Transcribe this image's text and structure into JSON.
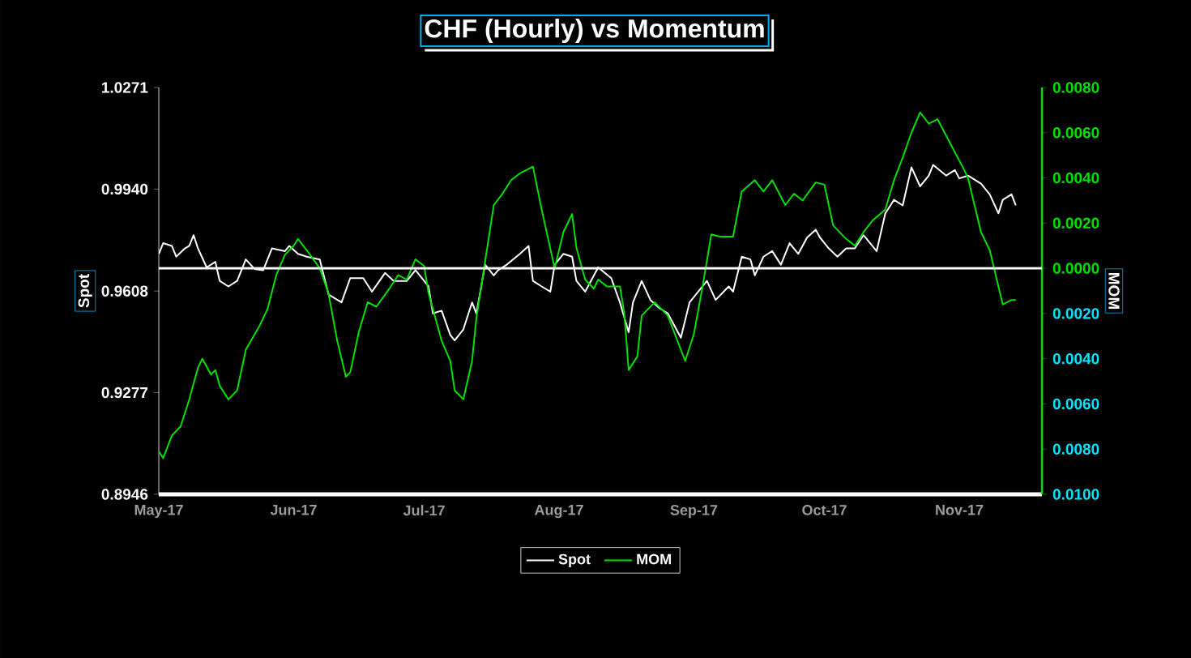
{
  "chart_data": {
    "type": "line",
    "title": "CHF (Hourly) vs Momentum",
    "ylabel": "Spot",
    "y2label": "MOM",
    "xlim": [
      "2017-05-01",
      "2017-11-20"
    ],
    "xticks": [
      {
        "value": "2017-05-01",
        "label": "May-17"
      },
      {
        "value": "2017-06-01",
        "label": "Jun-17"
      },
      {
        "value": "2017-07-01",
        "label": "Jul-17"
      },
      {
        "value": "2017-08-01",
        "label": "Aug-17"
      },
      {
        "value": "2017-09-01",
        "label": "Sep-17"
      },
      {
        "value": "2017-10-01",
        "label": "Oct-17"
      },
      {
        "value": "2017-11-01",
        "label": "Nov-17"
      }
    ],
    "ylim": [
      0.8946,
      1.0271
    ],
    "yticks": [
      {
        "value": 0.8946,
        "label": "0.8946"
      },
      {
        "value": 0.9277,
        "label": "0.9277"
      },
      {
        "value": 0.9608,
        "label": "0.9608"
      },
      {
        "value": 0.994,
        "label": "0.9940"
      },
      {
        "value": 1.0271,
        "label": "1.0271"
      }
    ],
    "y2lim": [
      -0.01,
      0.008
    ],
    "y2ticks": [
      {
        "value": -0.01,
        "label": "0.0100"
      },
      {
        "value": -0.008,
        "label": "0.0080"
      },
      {
        "value": -0.006,
        "label": "0.0060"
      },
      {
        "value": -0.004,
        "label": "0.0040"
      },
      {
        "value": -0.002,
        "label": "0.0020"
      },
      {
        "value": 0,
        "label": "0.0000"
      },
      {
        "value": 0.002,
        "label": "0.0020"
      },
      {
        "value": 0.004,
        "label": "0.0040"
      },
      {
        "value": 0.006,
        "label": "0.0060"
      },
      {
        "value": 0.008,
        "label": "0.0080"
      }
    ],
    "ref_lines": [
      {
        "axis": "y2",
        "value": 0,
        "color": "#ffffff"
      }
    ],
    "legend": "bottom",
    "grid": false,
    "marker": "none",
    "line_style": "solid",
    "series": [
      {
        "name": "Spot",
        "color": "#ffffff",
        "x": [
          "2017-05-01",
          "2017-05-02",
          "2017-05-04",
          "2017-05-05",
          "2017-05-07",
          "2017-05-08",
          "2017-05-09",
          "2017-05-10",
          "2017-05-12",
          "2017-05-14",
          "2017-05-15",
          "2017-05-17",
          "2017-05-19",
          "2017-05-21",
          "2017-05-23",
          "2017-05-25",
          "2017-05-27",
          "2017-05-30",
          "2017-05-31",
          "2017-06-02",
          "2017-06-04",
          "2017-06-07",
          "2017-06-09",
          "2017-06-12",
          "2017-06-14",
          "2017-06-17",
          "2017-06-19",
          "2017-06-22",
          "2017-06-24",
          "2017-06-27",
          "2017-06-29",
          "2017-07-02",
          "2017-07-03",
          "2017-07-05",
          "2017-07-07",
          "2017-07-08",
          "2017-07-10",
          "2017-07-12",
          "2017-07-13",
          "2017-07-15",
          "2017-07-17",
          "2017-07-18",
          "2017-07-20",
          "2017-07-23",
          "2017-07-25",
          "2017-07-26",
          "2017-07-28",
          "2017-07-30",
          "2017-07-31",
          "2017-08-02",
          "2017-08-04",
          "2017-08-05",
          "2017-08-07",
          "2017-08-10",
          "2017-08-13",
          "2017-08-15",
          "2017-08-17",
          "2017-08-18",
          "2017-08-20",
          "2017-08-22",
          "2017-08-24",
          "2017-08-26",
          "2017-08-29",
          "2017-08-31",
          "2017-09-02",
          "2017-09-04",
          "2017-09-06",
          "2017-09-09",
          "2017-09-10",
          "2017-09-12",
          "2017-09-14",
          "2017-09-15",
          "2017-09-17",
          "2017-09-19",
          "2017-09-21",
          "2017-09-23",
          "2017-09-25",
          "2017-09-27",
          "2017-09-29",
          "2017-09-30",
          "2017-10-02",
          "2017-10-04",
          "2017-10-06",
          "2017-10-08",
          "2017-10-10",
          "2017-10-13",
          "2017-10-15",
          "2017-10-17",
          "2017-10-19",
          "2017-10-21",
          "2017-10-23",
          "2017-10-25",
          "2017-10-26",
          "2017-10-29",
          "2017-10-31",
          "2017-11-01",
          "2017-11-03",
          "2017-11-06",
          "2017-11-08",
          "2017-11-10",
          "2017-11-11",
          "2017-11-13",
          "2017-11-14"
        ],
        "values": [
          0.9729,
          0.9764,
          0.9755,
          0.972,
          0.9747,
          0.9755,
          0.979,
          0.9747,
          0.9685,
          0.9703,
          0.9641,
          0.9623,
          0.9641,
          0.9711,
          0.968,
          0.9676,
          0.9747,
          0.9738,
          0.9755,
          0.9729,
          0.972,
          0.9711,
          0.9597,
          0.9571,
          0.965,
          0.965,
          0.9606,
          0.9667,
          0.9641,
          0.9641,
          0.9676,
          0.9623,
          0.9535,
          0.9544,
          0.9465,
          0.9447,
          0.9483,
          0.9571,
          0.9535,
          0.9694,
          0.9659,
          0.9676,
          0.9694,
          0.9729,
          0.9755,
          0.9641,
          0.9623,
          0.9606,
          0.9694,
          0.9729,
          0.972,
          0.9641,
          0.9606,
          0.9685,
          0.965,
          0.9571,
          0.9474,
          0.9571,
          0.9641,
          0.9579,
          0.9553,
          0.9535,
          0.9456,
          0.9571,
          0.9606,
          0.9641,
          0.9579,
          0.9623,
          0.9606,
          0.972,
          0.9711,
          0.9659,
          0.972,
          0.9738,
          0.9694,
          0.9764,
          0.9729,
          0.9782,
          0.9808,
          0.9782,
          0.9747,
          0.972,
          0.9747,
          0.9747,
          0.979,
          0.9738,
          0.9861,
          0.9905,
          0.9887,
          1.0011,
          0.9949,
          0.9984,
          1.0019,
          0.9984,
          1.0002,
          0.9975,
          0.9984,
          0.9958,
          0.9923,
          0.9861,
          0.9905,
          0.9923,
          0.9887
        ]
      },
      {
        "name": "MOM",
        "color": "#00e000",
        "axis": "y2",
        "x": [
          "2017-05-01",
          "2017-05-02",
          "2017-05-04",
          "2017-05-06",
          "2017-05-08",
          "2017-05-10",
          "2017-05-11",
          "2017-05-13",
          "2017-05-14",
          "2017-05-15",
          "2017-05-17",
          "2017-05-19",
          "2017-05-21",
          "2017-05-24",
          "2017-05-26",
          "2017-05-28",
          "2017-05-30",
          "2017-06-01",
          "2017-06-02",
          "2017-06-04",
          "2017-06-07",
          "2017-06-09",
          "2017-06-11",
          "2017-06-13",
          "2017-06-14",
          "2017-06-16",
          "2017-06-18",
          "2017-06-20",
          "2017-06-23",
          "2017-06-25",
          "2017-06-27",
          "2017-06-29",
          "2017-07-01",
          "2017-07-02",
          "2017-07-05",
          "2017-07-07",
          "2017-07-08",
          "2017-07-10",
          "2017-07-12",
          "2017-07-13",
          "2017-07-15",
          "2017-07-17",
          "2017-07-19",
          "2017-07-21",
          "2017-07-23",
          "2017-07-26",
          "2017-07-28",
          "2017-07-31",
          "2017-08-02",
          "2017-08-04",
          "2017-08-05",
          "2017-08-07",
          "2017-08-09",
          "2017-08-10",
          "2017-08-12",
          "2017-08-15",
          "2017-08-16",
          "2017-08-17",
          "2017-08-19",
          "2017-08-20",
          "2017-08-23",
          "2017-08-26",
          "2017-08-29",
          "2017-08-30",
          "2017-09-01",
          "2017-09-03",
          "2017-09-05",
          "2017-09-07",
          "2017-09-10",
          "2017-09-12",
          "2017-09-15",
          "2017-09-17",
          "2017-09-19",
          "2017-09-22",
          "2017-09-24",
          "2017-09-26",
          "2017-09-29",
          "2017-10-01",
          "2017-10-03",
          "2017-10-06",
          "2017-10-08",
          "2017-10-10",
          "2017-10-12",
          "2017-10-15",
          "2017-10-17",
          "2017-10-19",
          "2017-10-21",
          "2017-10-23",
          "2017-10-25",
          "2017-10-27",
          "2017-10-30",
          "2017-11-02",
          "2017-11-03",
          "2017-11-06",
          "2017-11-08",
          "2017-11-11",
          "2017-11-13",
          "2017-11-14"
        ],
        "values": [
          -0.0081,
          -0.0084,
          -0.0074,
          -0.007,
          -0.0058,
          -0.0044,
          -0.004,
          -0.0047,
          -0.0045,
          -0.0052,
          -0.0058,
          -0.0054,
          -0.0036,
          -0.0026,
          -0.0018,
          -0.0003,
          0.0006,
          0.001,
          0.0013,
          0.0008,
          0.0,
          -0.0011,
          -0.0032,
          -0.0048,
          -0.0046,
          -0.0028,
          -0.0015,
          -0.0017,
          -0.0009,
          -0.0003,
          -0.0005,
          0.0004,
          0.0001,
          -0.0011,
          -0.0032,
          -0.0041,
          -0.0054,
          -0.0058,
          -0.0041,
          -0.0022,
          0.0003,
          0.0028,
          0.0033,
          0.0039,
          0.0042,
          0.0045,
          0.0026,
          0.0,
          0.0016,
          0.0024,
          0.0009,
          -0.0005,
          -0.0009,
          -0.0005,
          -0.0008,
          -0.0008,
          -0.002,
          -0.0045,
          -0.0039,
          -0.0021,
          -0.0015,
          -0.0021,
          -0.0036,
          -0.0041,
          -0.0029,
          -0.0008,
          0.0015,
          0.0014,
          0.0014,
          0.0034,
          0.0039,
          0.0034,
          0.0039,
          0.0028,
          0.0033,
          0.003,
          0.0038,
          0.0037,
          0.0019,
          0.0013,
          0.001,
          0.0016,
          0.0021,
          0.0026,
          0.0039,
          0.0049,
          0.006,
          0.0069,
          0.0064,
          0.0066,
          0.0055,
          0.0044,
          0.004,
          0.0016,
          0.0008,
          -0.0016,
          -0.0014,
          -0.0014
        ]
      }
    ]
  }
}
